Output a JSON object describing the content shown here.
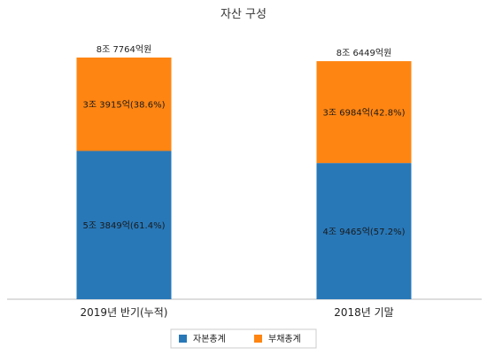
{
  "chart_data": {
    "type": "bar",
    "stacked": true,
    "title": "자산 구성",
    "unit": "억원",
    "categories": [
      "2019년 반기(누적)",
      "2018년 기말"
    ],
    "series": [
      {
        "name": "자본총계",
        "color": "#2878b8",
        "values": [
          53849,
          49465
        ],
        "labels": [
          "5조 3849억(61.4%)",
          "4조 9465억(57.2%)"
        ]
      },
      {
        "name": "부채총계",
        "color": "#ff8512",
        "values": [
          33915,
          36984
        ],
        "labels": [
          "3조 3915억(38.6%)",
          "3조 6984억(42.8%)"
        ]
      }
    ],
    "totals": [
      87764,
      86449
    ],
    "total_labels": [
      "8조 7764억원",
      "8조 6449억원"
    ],
    "ylim": [
      0,
      87764
    ],
    "grid": false,
    "legend_position": "bottom"
  }
}
